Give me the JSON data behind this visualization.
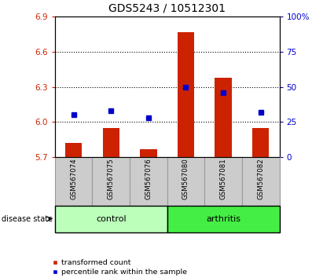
{
  "title": "GDS5243 / 10512301",
  "samples": [
    "GSM567074",
    "GSM567075",
    "GSM567076",
    "GSM567080",
    "GSM567081",
    "GSM567082"
  ],
  "red_values": [
    5.82,
    5.95,
    5.77,
    6.77,
    6.38,
    5.95
  ],
  "blue_percentiles": [
    30,
    33,
    28,
    50,
    46,
    32
  ],
  "baseline": 5.7,
  "ylim_left": [
    5.7,
    6.9
  ],
  "ylim_right": [
    0,
    100
  ],
  "left_ticks": [
    5.7,
    6.0,
    6.3,
    6.6,
    6.9
  ],
  "right_ticks": [
    0,
    25,
    50,
    75,
    100
  ],
  "right_tick_labels": [
    "0",
    "25",
    "50",
    "75",
    "100%"
  ],
  "bar_color": "#CC2200",
  "dot_color": "#0000CC",
  "control_color": "#BBFFBB",
  "arthritis_color": "#44EE44",
  "sample_box_color": "#CCCCCC",
  "title_fontsize": 10,
  "tick_fontsize": 7.5,
  "bar_width": 0.45
}
